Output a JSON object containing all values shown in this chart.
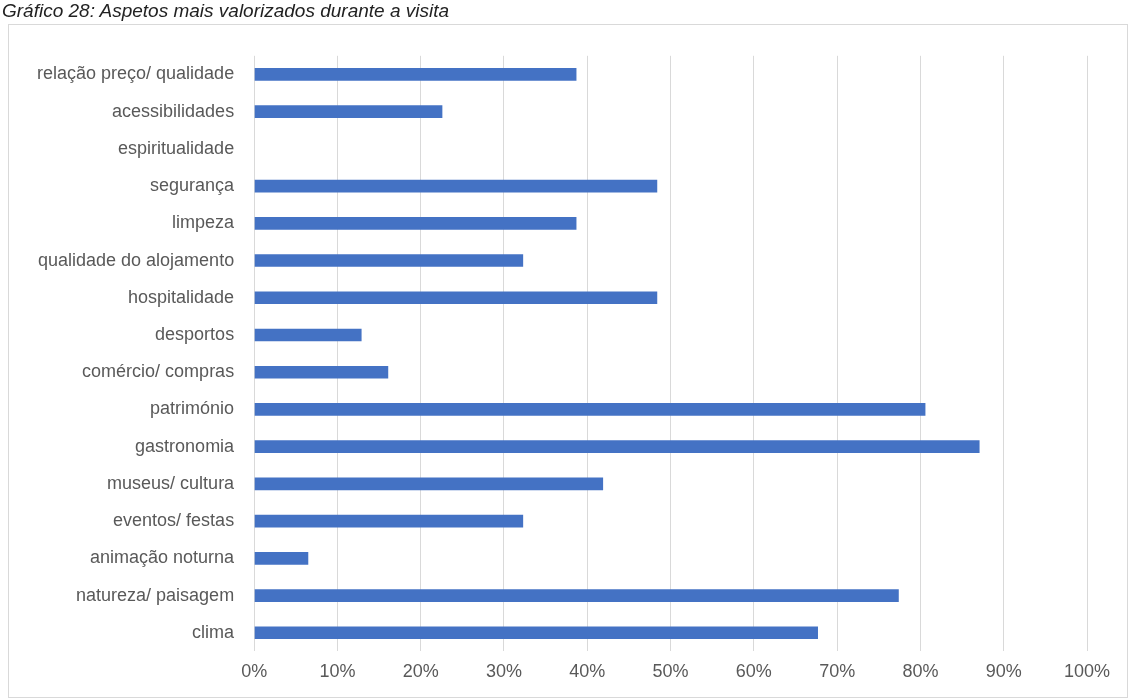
{
  "chart_data": {
    "type": "bar",
    "orientation": "horizontal",
    "title": "Gráfico 28: Aspetos mais valorizados durante a visita",
    "categories": [
      "relação preço/ qualidade",
      "acessibilidades",
      "espiritualidade",
      "segurança",
      "limpeza",
      "qualidade do alojamento",
      "hospitalidade",
      "desportos",
      "comércio/ compras",
      "património",
      "gastronomia",
      "museus/ cultura",
      "eventos/ festas",
      "animação noturna",
      "natureza/ paisagem",
      "clima"
    ],
    "values": [
      38.7,
      22.6,
      0,
      48.4,
      38.7,
      32.3,
      48.4,
      12.9,
      16.1,
      80.6,
      87.1,
      41.9,
      32.3,
      6.5,
      77.4,
      67.7
    ],
    "color": "#4472c4",
    "xlim": [
      0,
      100
    ],
    "xticks": [
      {
        "value": 0,
        "label": "0%"
      },
      {
        "value": 10,
        "label": "10%"
      },
      {
        "value": 20,
        "label": "20%"
      },
      {
        "value": 30,
        "label": "30%"
      },
      {
        "value": 40,
        "label": "40%"
      },
      {
        "value": 50,
        "label": "50%"
      },
      {
        "value": 60,
        "label": "60%"
      },
      {
        "value": 70,
        "label": "70%"
      },
      {
        "value": 80,
        "label": "80%"
      },
      {
        "value": 90,
        "label": "90%"
      },
      {
        "value": 100,
        "label": "100%"
      }
    ],
    "grid": "x",
    "legend": false
  }
}
